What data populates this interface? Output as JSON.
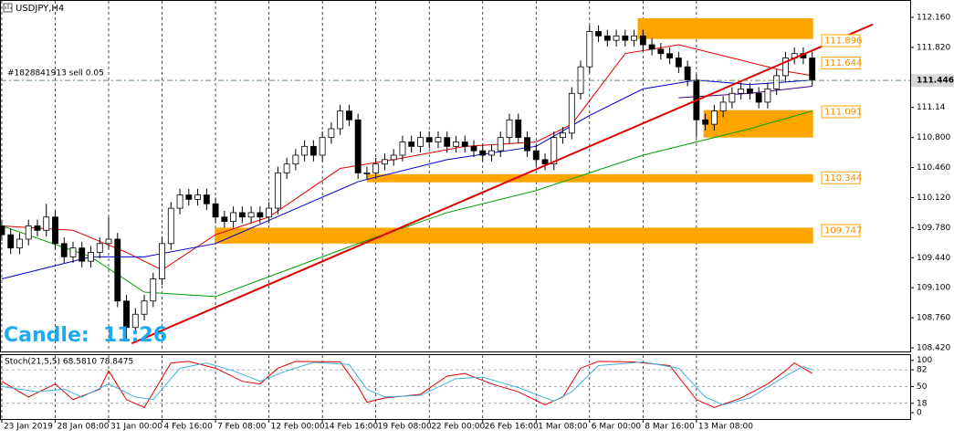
{
  "chart_data": [
    {
      "type": "candlestick",
      "title": "USDJPY,H4",
      "order_label": "#1828841913 sell 0.05",
      "timer_label": "Candle:  11:26",
      "xlim": [
        -0.2,
        102
      ],
      "xticks": [
        {
          "value": 0,
          "label": "23 Jan 2019"
        },
        {
          "value": 6,
          "label": "28 Jan 08:00"
        },
        {
          "value": 12,
          "label": "31 Jan 00:00"
        },
        {
          "value": 18,
          "label": "4 Feb 16:00"
        },
        {
          "value": 24,
          "label": "7 Feb 08:00"
        },
        {
          "value": 30,
          "label": "12 Feb 00:00"
        },
        {
          "value": 36,
          "label": "14 Feb 16:00"
        },
        {
          "value": 42,
          "label": "19 Feb 08:00"
        },
        {
          "value": 48,
          "label": "22 Feb 00:00"
        },
        {
          "value": 54,
          "label": "26 Feb 16:00"
        },
        {
          "value": 60,
          "label": "1 Mar 08:00"
        },
        {
          "value": 66,
          "label": "6 Mar 00:00"
        },
        {
          "value": 72,
          "label": "8 Mar 16:00"
        },
        {
          "value": 78,
          "label": "13 Mar 08:00"
        }
      ],
      "ylim": [
        108.379,
        112.346
      ],
      "yticks": [
        {
          "value": 112.16,
          "label": "112.160"
        },
        {
          "value": 111.82,
          "label": "111.820"
        },
        111.14,
        {
          "value": 110.8,
          "label": "110.800"
        },
        {
          "value": 110.46,
          "label": "110.460"
        },
        {
          "value": 110.12,
          "label": "110.120"
        },
        {
          "value": 109.78,
          "label": "109.780"
        },
        {
          "value": 109.44,
          "label": "109.440"
        },
        {
          "value": 109.1,
          "label": "109.100"
        },
        {
          "value": 108.76,
          "label": "108.760"
        },
        {
          "value": 108.42,
          "label": "108.420"
        }
      ],
      "current_price": 111.446,
      "colors": {
        "bull": "#ffffff",
        "bear": "#000000",
        "zone": "#ffa500",
        "level_text": "#f08c00",
        "current": "#5f8f5f"
      },
      "open": [
        109.8,
        109.7,
        109.55,
        109.65,
        109.8,
        109.75,
        109.9,
        109.6,
        109.45,
        109.55,
        109.4,
        109.5,
        109.6,
        109.65,
        108.95,
        108.65,
        108.8,
        108.95,
        109.2,
        109.6,
        110.0,
        110.15,
        110.1,
        110.15,
        110.05,
        109.9,
        109.85,
        109.95,
        109.9,
        109.95,
        109.9,
        110.0,
        110.4,
        110.5,
        110.6,
        110.7,
        110.6,
        110.8,
        110.9,
        111.1,
        111.0,
        110.4,
        110.4,
        110.5,
        110.55,
        110.6,
        110.75,
        110.7,
        110.8,
        110.75,
        110.8,
        110.7,
        110.75,
        110.7,
        110.65,
        110.6,
        110.65,
        110.8,
        111.0,
        110.8,
        110.65,
        110.55,
        110.5,
        110.8,
        110.85,
        111.3,
        111.6,
        112.0,
        111.95,
        111.9,
        111.95,
        111.9,
        111.95,
        111.85,
        111.8,
        111.75,
        111.7,
        111.6,
        111.45,
        111.0,
        110.95,
        111.1,
        111.2,
        111.3,
        111.35,
        111.3,
        111.2,
        111.35,
        111.5,
        111.7,
        111.75,
        111.7
      ],
      "high": [
        109.87,
        109.77,
        109.72,
        109.87,
        109.87,
        110.05,
        109.97,
        109.67,
        109.62,
        109.62,
        109.57,
        109.67,
        109.9,
        109.72,
        109.02,
        108.87,
        109.02,
        109.27,
        109.67,
        110.07,
        110.22,
        110.22,
        110.22,
        110.22,
        110.12,
        109.97,
        110.02,
        110.02,
        110.02,
        110.02,
        110.07,
        110.47,
        110.57,
        110.67,
        110.77,
        110.77,
        110.87,
        110.97,
        111.17,
        111.17,
        111.07,
        110.47,
        110.57,
        110.62,
        110.67,
        110.82,
        110.82,
        110.87,
        110.87,
        110.87,
        110.87,
        110.82,
        110.82,
        110.77,
        110.72,
        110.72,
        110.87,
        111.07,
        111.07,
        110.87,
        110.72,
        110.62,
        110.87,
        110.92,
        111.37,
        111.67,
        112.07,
        112.07,
        112.02,
        112.02,
        112.02,
        112.02,
        112.02,
        111.92,
        111.87,
        111.82,
        111.77,
        111.67,
        111.52,
        111.07,
        111.17,
        111.27,
        111.37,
        111.42,
        111.42,
        111.37,
        111.42,
        111.57,
        111.77,
        111.82,
        111.82,
        111.77
      ],
      "low": [
        109.63,
        109.48,
        109.48,
        109.58,
        109.68,
        109.68,
        109.53,
        109.38,
        109.38,
        109.33,
        109.33,
        109.43,
        109.53,
        108.88,
        108.5,
        108.58,
        108.73,
        108.88,
        109.13,
        109.53,
        109.93,
        110.03,
        110.03,
        109.98,
        109.83,
        109.78,
        109.78,
        109.83,
        109.83,
        109.83,
        109.83,
        109.93,
        110.33,
        110.43,
        110.53,
        110.53,
        110.53,
        110.73,
        110.83,
        110.93,
        110.33,
        110.33,
        110.33,
        110.43,
        110.48,
        110.53,
        110.63,
        110.63,
        110.68,
        110.68,
        110.63,
        110.63,
        110.63,
        110.58,
        110.53,
        110.53,
        110.58,
        110.73,
        110.73,
        110.58,
        110.48,
        110.43,
        110.43,
        110.73,
        110.78,
        111.23,
        111.53,
        111.88,
        111.83,
        111.83,
        111.83,
        111.83,
        111.78,
        111.73,
        111.68,
        111.63,
        111.53,
        111.38,
        110.8,
        110.88,
        110.88,
        111.03,
        111.13,
        111.23,
        111.23,
        111.13,
        111.13,
        111.28,
        111.43,
        111.63,
        111.63,
        111.38
      ],
      "close": [
        109.7,
        109.55,
        109.65,
        109.8,
        109.75,
        109.9,
        109.6,
        109.45,
        109.55,
        109.4,
        109.5,
        109.6,
        109.65,
        108.95,
        108.65,
        108.8,
        108.95,
        109.2,
        109.6,
        110.0,
        110.15,
        110.1,
        110.15,
        110.05,
        109.9,
        109.85,
        109.95,
        109.9,
        109.95,
        109.9,
        110.0,
        110.4,
        110.5,
        110.6,
        110.7,
        110.6,
        110.8,
        110.9,
        111.1,
        111.0,
        110.4,
        110.4,
        110.5,
        110.55,
        110.6,
        110.75,
        110.7,
        110.8,
        110.75,
        110.8,
        110.7,
        110.75,
        110.7,
        110.65,
        110.6,
        110.65,
        110.8,
        111.0,
        110.8,
        110.65,
        110.55,
        110.5,
        110.8,
        110.85,
        111.3,
        111.6,
        112.0,
        111.95,
        111.9,
        111.95,
        111.9,
        111.95,
        111.85,
        111.8,
        111.75,
        111.7,
        111.6,
        111.45,
        111.0,
        110.95,
        111.1,
        111.2,
        111.3,
        111.35,
        111.3,
        111.2,
        111.35,
        111.5,
        111.7,
        111.75,
        111.7,
        111.45
      ],
      "moving_averages": [
        {
          "color": "#e00000",
          "x": [
            0,
            8,
            14,
            18,
            24,
            30,
            38,
            44,
            52,
            60,
            64,
            70,
            76,
            82,
            88,
            91
          ],
          "values": [
            109.8,
            109.75,
            109.5,
            109.3,
            109.7,
            109.9,
            110.45,
            110.55,
            110.7,
            110.75,
            110.95,
            111.75,
            111.85,
            111.7,
            111.55,
            111.5
          ]
        },
        {
          "color": "#0000c8",
          "x": [
            0,
            10,
            16,
            24,
            32,
            40,
            50,
            60,
            66,
            72,
            78,
            84,
            91
          ],
          "values": [
            109.2,
            109.45,
            109.45,
            109.6,
            109.95,
            110.3,
            110.55,
            110.7,
            111.05,
            111.35,
            111.45,
            111.4,
            111.45
          ]
        },
        {
          "color": "#400080",
          "x": [
            76,
            84,
            91
          ],
          "values": [
            111.25,
            111.3,
            111.38
          ]
        },
        {
          "color": "#00a000",
          "x": [
            0,
            10,
            16,
            24,
            32,
            40,
            50,
            60,
            66,
            72,
            78,
            84,
            91
          ],
          "values": [
            109.8,
            109.45,
            109.05,
            109.0,
            109.3,
            109.6,
            109.95,
            110.2,
            110.4,
            110.6,
            110.75,
            110.9,
            111.1
          ]
        }
      ],
      "trendline": {
        "color": "#e00000",
        "x": [
          14.6,
          97.8
        ],
        "values": [
          108.47,
          112.08
        ]
      },
      "zones": [
        {
          "top": 112.15,
          "bottom": 111.915,
          "start": 71.4,
          "end": 91.1
        },
        {
          "top": 111.11,
          "bottom": 110.8,
          "start": 78.8,
          "end": 91.1
        },
        {
          "top": 110.385,
          "bottom": 110.293,
          "start": 41,
          "end": 91.1
        },
        {
          "top": 109.78,
          "bottom": 109.6,
          "start": 23.9,
          "end": 91.1
        }
      ],
      "levels": [
        111.896,
        111.644,
        111.091,
        110.344,
        109.747
      ]
    },
    {
      "type": "line",
      "title": "Stoch(21,5,5) 68.5810 78.8475",
      "xlim": [
        -0.2,
        102
      ],
      "ylim": [
        -12,
        110
      ],
      "yticks": [
        100,
        82,
        50,
        18,
        0
      ],
      "levels": [
        82,
        50,
        18
      ],
      "series": [
        {
          "color": "#e00000",
          "x": [
            0,
            3,
            6,
            8,
            11,
            12,
            14,
            16,
            19,
            21,
            24,
            27,
            29,
            31,
            33,
            38,
            40,
            41,
            43,
            47,
            50,
            52,
            55,
            58,
            61,
            63,
            65,
            67,
            71,
            75,
            78,
            80,
            83,
            86,
            88,
            89,
            91
          ],
          "values": [
            60,
            30,
            55,
            25,
            45,
            80,
            25,
            10,
            95,
            98,
            85,
            60,
            55,
            85,
            98,
            97,
            50,
            20,
            28,
            35,
            70,
            75,
            55,
            40,
            15,
            30,
            85,
            98,
            97,
            90,
            25,
            10,
            28,
            55,
            80,
            95,
            75
          ]
        },
        {
          "color": "#40b0e0",
          "x": [
            0,
            4,
            7,
            9,
            12,
            15,
            17,
            20,
            23,
            26,
            29,
            32,
            35,
            39,
            41,
            43,
            47,
            51,
            54,
            58,
            62,
            64,
            67,
            72,
            76,
            79,
            81,
            84,
            88,
            90,
            91
          ],
          "values": [
            50,
            40,
            45,
            30,
            55,
            30,
            25,
            85,
            95,
            80,
            60,
            80,
            96,
            92,
            45,
            30,
            33,
            65,
            68,
            48,
            22,
            40,
            90,
            97,
            85,
            30,
            15,
            28,
            70,
            88,
            82
          ]
        }
      ]
    }
  ]
}
